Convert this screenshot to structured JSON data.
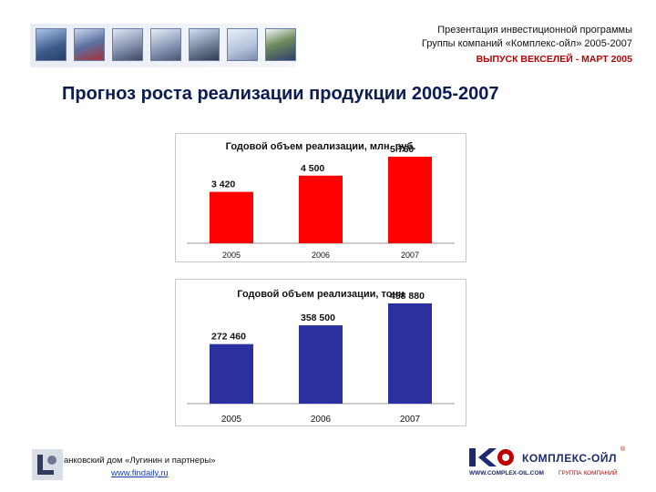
{
  "header": {
    "line1": "Презентация инвестиционной программы",
    "line2": "Группы компаний «Комплекс-ойл» 2005-2007",
    "line3": "ВЫПУСК ВЕКСЕЛЕЙ - МАРТ 2005"
  },
  "page_title": "Прогноз роста реализации продукции 2005-2007",
  "chart_data": [
    {
      "type": "bar",
      "title": "Годовой объем реализации, млн. руб.",
      "categories": [
        "2005",
        "2006",
        "2007"
      ],
      "values": [
        3420,
        4500,
        5760
      ],
      "data_labels": [
        "3 420",
        "4 500",
        "5 760"
      ],
      "color": "#ff0000",
      "grid": false
    },
    {
      "type": "bar",
      "title": "Годовой объем реализации, тонн",
      "categories": [
        "2005",
        "2006",
        "2007"
      ],
      "values": [
        272460,
        358500,
        458880
      ],
      "data_labels": [
        "272 460",
        "358 500",
        "458 880"
      ],
      "color": "#2b30a0",
      "grid": false
    }
  ],
  "footer": {
    "left_text": "анковский дом «Лугинин и партнеры»",
    "left_link": "www.findaily.ru",
    "brand": "КОМПЛЕКС-ОЙЛ",
    "brand_url": "WWW.COMPLEX-OIL.COM",
    "brand_group": "ГРУППА КОМПАНИЙ",
    "reg_mark": "®"
  }
}
